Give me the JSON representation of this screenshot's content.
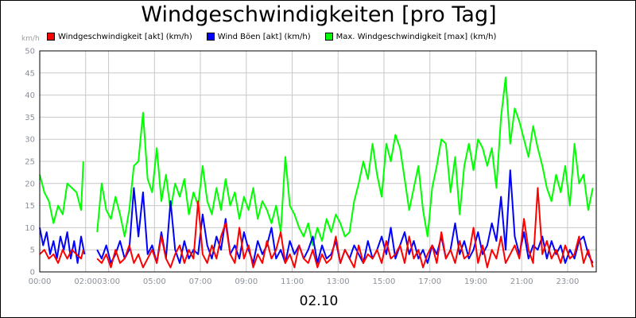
{
  "chart_data": {
    "type": "line",
    "title": "Windgeschwindigkeiten [pro Tag]",
    "ylabel": "km/h",
    "xlabel": "02.10",
    "ylim": [
      0,
      50
    ],
    "xlim": [
      0,
      24.25
    ],
    "y_ticks": [
      0,
      5,
      10,
      15,
      20,
      25,
      30,
      35,
      40,
      45,
      50
    ],
    "x_ticks": [
      {
        "value": 0,
        "label": "00:00"
      },
      {
        "value": 2,
        "label": "02:00"
      },
      {
        "value": 3,
        "label": "03:00"
      },
      {
        "value": 5,
        "label": "05:00"
      },
      {
        "value": 7,
        "label": "07:00"
      },
      {
        "value": 9,
        "label": "09:00"
      },
      {
        "value": 11,
        "label": "11:00"
      },
      {
        "value": 13,
        "label": "13:00"
      },
      {
        "value": 15,
        "label": "15:00"
      },
      {
        "value": 17,
        "label": "17:00"
      },
      {
        "value": 19,
        "label": "19:00"
      },
      {
        "value": 21,
        "label": "21:00"
      },
      {
        "value": 23,
        "label": "23:00"
      }
    ],
    "grid": true,
    "legend": "top-left",
    "series": [
      {
        "name": "Windgeschwindigkeit [akt] (km/h)",
        "color": "#ff0000",
        "segments": [
          {
            "x": [
              0.0,
              0.2,
              0.4,
              0.6,
              0.8,
              1.0,
              1.2,
              1.4,
              1.6,
              1.8,
              1.9
            ],
            "y": [
              4,
              5,
              3,
              4,
              2,
              5,
              3,
              5,
              4,
              3,
              5
            ]
          },
          {
            "x": [
              2.5,
              2.7,
              2.9,
              3.1,
              3.3,
              3.5,
              3.7,
              3.9,
              4.1,
              4.3,
              4.5,
              4.7,
              4.9,
              5.1,
              5.3,
              5.5,
              5.7,
              5.9,
              6.1,
              6.3,
              6.5,
              6.7,
              6.9,
              7.1,
              7.3,
              7.5,
              7.7,
              7.9,
              8.1,
              8.3,
              8.5,
              8.7,
              8.9,
              9.1,
              9.3,
              9.5,
              9.7,
              9.9,
              10.1,
              10.3,
              10.5,
              10.7,
              10.9,
              11.1,
              11.3,
              11.5,
              11.7,
              11.9,
              12.1,
              12.3,
              12.5,
              12.7,
              12.9,
              13.1,
              13.3,
              13.5,
              13.7,
              13.9,
              14.1,
              14.3,
              14.5,
              14.7,
              14.9,
              15.1,
              15.3,
              15.5,
              15.7,
              15.9,
              16.1,
              16.3,
              16.5,
              16.7,
              16.9,
              17.1,
              17.3,
              17.5,
              17.7,
              17.9,
              18.1,
              18.3,
              18.5,
              18.7,
              18.9,
              19.1,
              19.3,
              19.5,
              19.7,
              19.9,
              20.1,
              20.3,
              20.5,
              20.7,
              20.9,
              21.1,
              21.3,
              21.5,
              21.7,
              21.9,
              22.1,
              22.3,
              22.5,
              22.7,
              22.9,
              23.1,
              23.3,
              23.5,
              23.7,
              23.9,
              24.1
            ],
            "y": [
              3,
              2,
              4,
              1,
              5,
              2,
              3,
              6,
              2,
              4,
              1,
              3,
              5,
              2,
              8,
              3,
              1,
              4,
              6,
              2,
              5,
              3,
              16,
              4,
              2,
              6,
              3,
              8,
              11,
              4,
              2,
              10,
              3,
              6,
              1,
              4,
              2,
              7,
              3,
              5,
              9,
              2,
              4,
              1,
              6,
              3,
              2,
              5,
              1,
              4,
              2,
              3,
              8,
              2,
              5,
              3,
              1,
              6,
              2,
              4,
              3,
              5,
              2,
              7,
              3,
              4,
              6,
              2,
              8,
              3,
              5,
              1,
              4,
              6,
              2,
              9,
              3,
              5,
              2,
              7,
              3,
              4,
              10,
              2,
              6,
              1,
              5,
              3,
              8,
              2,
              4,
              6,
              3,
              12,
              5,
              2,
              19,
              4,
              7,
              3,
              5,
              2,
              6,
              3,
              4,
              8,
              2,
              5,
              1
            ]
          }
        ]
      },
      {
        "name": "Wind Böen [akt] (km/h)",
        "color": "#0000ff",
        "segments": [
          {
            "x": [
              0.0,
              0.15,
              0.3,
              0.45,
              0.6,
              0.75,
              0.9,
              1.05,
              1.2,
              1.35,
              1.5,
              1.65,
              1.8,
              1.95
            ],
            "y": [
              10,
              6,
              9,
              4,
              7,
              3,
              8,
              5,
              9,
              3,
              7,
              2,
              8,
              4
            ]
          },
          {
            "x": [
              2.5,
              2.7,
              2.9,
              3.1,
              3.3,
              3.5,
              3.7,
              3.9,
              4.1,
              4.3,
              4.5,
              4.7,
              4.9,
              5.1,
              5.3,
              5.5,
              5.7,
              5.9,
              6.1,
              6.3,
              6.5,
              6.7,
              6.9,
              7.1,
              7.3,
              7.5,
              7.7,
              7.9,
              8.1,
              8.3,
              8.5,
              8.7,
              8.9,
              9.1,
              9.3,
              9.5,
              9.7,
              9.9,
              10.1,
              10.3,
              10.5,
              10.7,
              10.9,
              11.1,
              11.3,
              11.5,
              11.7,
              11.9,
              12.1,
              12.3,
              12.5,
              12.7,
              12.9,
              13.1,
              13.3,
              13.5,
              13.7,
              13.9,
              14.1,
              14.3,
              14.5,
              14.7,
              14.9,
              15.1,
              15.3,
              15.5,
              15.7,
              15.9,
              16.1,
              16.3,
              16.5,
              16.7,
              16.9,
              17.1,
              17.3,
              17.5,
              17.7,
              17.9,
              18.1,
              18.3,
              18.5,
              18.7,
              18.9,
              19.1,
              19.3,
              19.5,
              19.7,
              19.9,
              20.1,
              20.3,
              20.5,
              20.7,
              20.9,
              21.1,
              21.3,
              21.5,
              21.7,
              21.9,
              22.1,
              22.3,
              22.5,
              22.7,
              22.9,
              23.1,
              23.3,
              23.5,
              23.7,
              23.9,
              24.1
            ],
            "y": [
              5,
              3,
              6,
              2,
              4,
              7,
              3,
              5,
              19,
              8,
              18,
              4,
              6,
              2,
              9,
              3,
              16,
              5,
              2,
              7,
              3,
              5,
              4,
              13,
              6,
              3,
              8,
              5,
              12,
              4,
              6,
              3,
              9,
              5,
              2,
              7,
              4,
              6,
              10,
              3,
              5,
              2,
              7,
              4,
              6,
              3,
              5,
              8,
              2,
              6,
              3,
              4,
              7,
              2,
              5,
              3,
              6,
              4,
              2,
              7,
              3,
              5,
              8,
              4,
              10,
              3,
              6,
              9,
              4,
              7,
              3,
              5,
              2,
              6,
              4,
              8,
              3,
              5,
              11,
              4,
              7,
              3,
              5,
              9,
              4,
              6,
              11,
              7,
              17,
              5,
              23,
              8,
              4,
              9,
              3,
              6,
              5,
              8,
              3,
              7,
              4,
              6,
              2,
              5,
              3,
              7,
              8,
              4,
              2
            ]
          }
        ]
      },
      {
        "name": "Max. Windgeschwindigkeit [max] (km/h)",
        "color": "#00ff00",
        "segments": [
          {
            "x": [
              0.0,
              0.2,
              0.4,
              0.6,
              0.8,
              1.0,
              1.2,
              1.4,
              1.6,
              1.8,
              1.9
            ],
            "y": [
              22,
              18,
              16,
              11,
              15,
              13,
              20,
              19,
              18,
              14,
              25
            ]
          },
          {
            "x": [
              2.5,
              2.7,
              2.9,
              3.1,
              3.3,
              3.5,
              3.7,
              3.9,
              4.1,
              4.3,
              4.5,
              4.7,
              4.9,
              5.1,
              5.3,
              5.5,
              5.7,
              5.9,
              6.1,
              6.3,
              6.5,
              6.7,
              6.9,
              7.1,
              7.3,
              7.5,
              7.7,
              7.9,
              8.1,
              8.3,
              8.5,
              8.7,
              8.9,
              9.1,
              9.3,
              9.5,
              9.7,
              9.9,
              10.1,
              10.3,
              10.5,
              10.7,
              10.9,
              11.1,
              11.3,
              11.5,
              11.7,
              11.9,
              12.1,
              12.3,
              12.5,
              12.7,
              12.9,
              13.1,
              13.3,
              13.5,
              13.7,
              13.9,
              14.1,
              14.3,
              14.5,
              14.7,
              14.9,
              15.1,
              15.3,
              15.5,
              15.7,
              15.9,
              16.1,
              16.3,
              16.5,
              16.7,
              16.9,
              17.1,
              17.3,
              17.5,
              17.7,
              17.9,
              18.1,
              18.3,
              18.5,
              18.7,
              18.9,
              19.1,
              19.3,
              19.5,
              19.7,
              19.9,
              20.1,
              20.3,
              20.5,
              20.7,
              20.9,
              21.1,
              21.3,
              21.5,
              21.7,
              21.9,
              22.1,
              22.3,
              22.5,
              22.7,
              22.9,
              23.1,
              23.3,
              23.5,
              23.7,
              23.9,
              24.1
            ],
            "y": [
              9,
              20,
              14,
              12,
              17,
              13,
              8,
              14,
              24,
              25,
              36,
              21,
              18,
              28,
              16,
              22,
              14,
              20,
              17,
              21,
              13,
              18,
              15,
              24,
              16,
              13,
              19,
              14,
              21,
              15,
              18,
              12,
              17,
              14,
              19,
              12,
              16,
              14,
              11,
              15,
              9,
              26,
              15,
              13,
              10,
              8,
              11,
              6,
              10,
              7,
              12,
              9,
              13,
              11,
              8,
              9,
              16,
              20,
              25,
              21,
              29,
              22,
              17,
              29,
              25,
              31,
              28,
              21,
              14,
              19,
              24,
              14,
              8,
              19,
              24,
              30,
              29,
              18,
              26,
              13,
              24,
              29,
              23,
              30,
              28,
              24,
              28,
              19,
              35,
              44,
              29,
              37,
              34,
              30,
              26,
              33,
              28,
              24,
              19,
              16,
              22,
              18,
              24,
              15,
              29,
              20,
              22,
              14,
              19
            ]
          }
        ]
      }
    ]
  }
}
